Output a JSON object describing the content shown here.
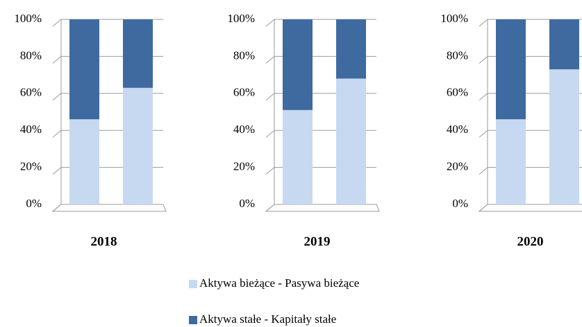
{
  "legend": [
    {
      "name": "Aktywa bieżące - Pasywa bieżące",
      "color": "#c6d9f1"
    },
    {
      "name": "Aktywa stałe - Kapitały stałe",
      "color": "#3e6aa0"
    }
  ],
  "chart_data": [
    {
      "type": "bar",
      "stacked": true,
      "title": "2018",
      "categories": [
        null,
        null
      ],
      "series": [
        {
          "values": [
            46,
            63
          ]
        },
        {
          "values": [
            54,
            37
          ]
        }
      ],
      "ylim": [
        0,
        100
      ],
      "yticks": [
        {
          "value": 0,
          "label": "0%"
        },
        {
          "value": 20,
          "label": "20%"
        },
        {
          "value": 40,
          "label": "40%"
        },
        {
          "value": 60,
          "label": "60%"
        },
        {
          "value": 80,
          "label": "80%"
        },
        {
          "value": 100,
          "label": "100%"
        }
      ],
      "grid": true
    },
    {
      "type": "bar",
      "stacked": true,
      "title": "2019",
      "categories": [
        null,
        null
      ],
      "series": [
        {
          "values": [
            51,
            68
          ]
        },
        {
          "values": [
            49,
            32
          ]
        }
      ],
      "ylim": [
        0,
        100
      ],
      "yticks": [
        {
          "value": 0,
          "label": "0%"
        },
        {
          "value": 20,
          "label": "20%"
        },
        {
          "value": 40,
          "label": "40%"
        },
        {
          "value": 60,
          "label": "60%"
        },
        {
          "value": 80,
          "label": "80%"
        },
        {
          "value": 100,
          "label": "100%"
        }
      ],
      "grid": true
    },
    {
      "type": "bar",
      "stacked": true,
      "title": "2020",
      "categories": [
        null,
        null
      ],
      "series": [
        {
          "values": [
            46,
            73
          ]
        },
        {
          "values": [
            54,
            27
          ]
        }
      ],
      "ylim": [
        0,
        100
      ],
      "yticks": [
        {
          "value": 0,
          "label": "0%"
        },
        {
          "value": 20,
          "label": "20%"
        },
        {
          "value": 40,
          "label": "40%"
        },
        {
          "value": 60,
          "label": "60%"
        },
        {
          "value": 80,
          "label": "80%"
        },
        {
          "value": 100,
          "label": "100%"
        }
      ],
      "grid": true
    }
  ]
}
